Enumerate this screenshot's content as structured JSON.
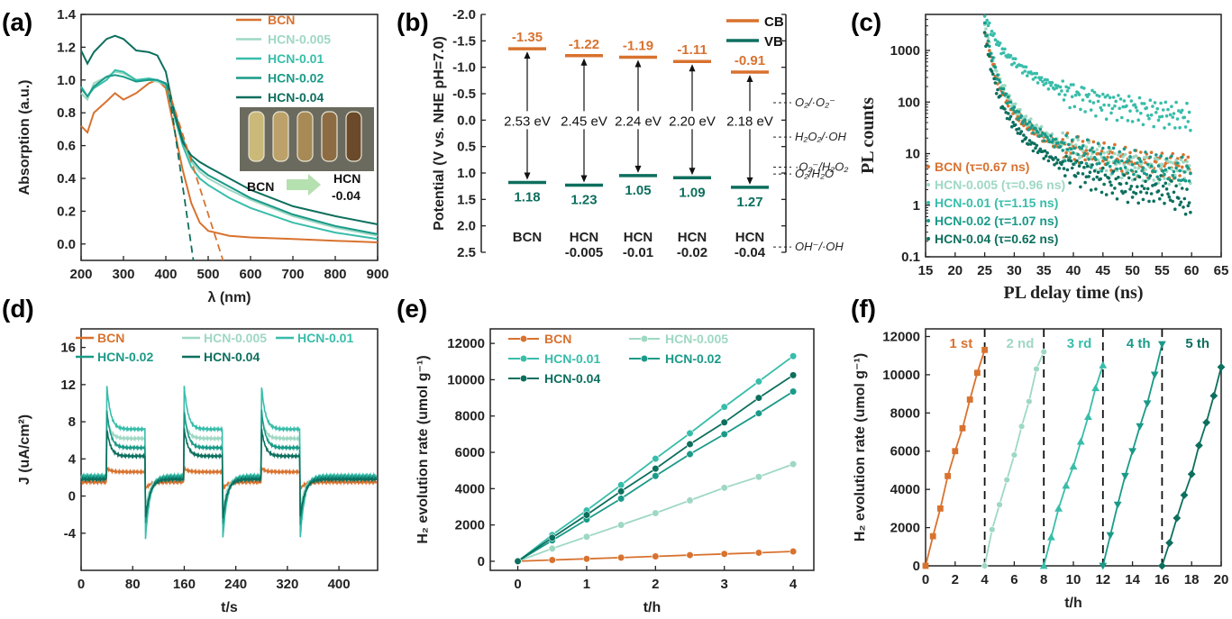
{
  "colors": {
    "BCN": "#d8722f",
    "HCN-0.005": "#9ed8c3",
    "HCN-0.01": "#38bdaa",
    "HCN-0.02": "#1a9a88",
    "HCN-0.04": "#0d6f5e",
    "CB": "#d8722f",
    "VB": "#0d6f5e"
  },
  "chart_data": [
    {
      "panel": "(a)",
      "type": "line",
      "xlabel": "λ (nm)",
      "ylabel": "Absorption (a.u.)",
      "xlim": [
        200,
        900
      ],
      "ylim": [
        -0.1,
        1.4
      ],
      "xticks": [
        200,
        300,
        400,
        500,
        600,
        700,
        800,
        900
      ],
      "yticks": [
        0.0,
        0.2,
        0.4,
        0.6,
        0.8,
        1.0,
        1.2,
        1.4
      ],
      "legend_position": "top-right",
      "series": [
        {
          "name": "BCN",
          "x": [
            200,
            215,
            230,
            260,
            280,
            300,
            330,
            360,
            380,
            400,
            420,
            440,
            460,
            480,
            500,
            550,
            600,
            700,
            800,
            900
          ],
          "y": [
            0.72,
            0.68,
            0.8,
            0.87,
            0.92,
            0.88,
            0.92,
            0.98,
            1.0,
            0.95,
            0.7,
            0.45,
            0.25,
            0.13,
            0.08,
            0.05,
            0.04,
            0.03,
            0.02,
            0.01
          ]
        },
        {
          "name": "HCN-0.005",
          "x": [
            200,
            215,
            230,
            260,
            280,
            300,
            330,
            360,
            380,
            400,
            420,
            440,
            460,
            480,
            500,
            550,
            600,
            700,
            800,
            900
          ],
          "y": [
            0.92,
            0.88,
            0.98,
            1.02,
            1.05,
            1.04,
            1.0,
            1.0,
            0.99,
            0.97,
            0.8,
            0.62,
            0.5,
            0.44,
            0.4,
            0.33,
            0.27,
            0.17,
            0.1,
            0.05
          ]
        },
        {
          "name": "HCN-0.01",
          "x": [
            200,
            215,
            230,
            260,
            280,
            300,
            330,
            360,
            380,
            400,
            420,
            440,
            460,
            480,
            500,
            550,
            600,
            700,
            800,
            900
          ],
          "y": [
            0.96,
            0.9,
            0.95,
            1.0,
            1.06,
            1.05,
            1.0,
            1.01,
            1.0,
            0.97,
            0.78,
            0.6,
            0.47,
            0.4,
            0.36,
            0.28,
            0.22,
            0.13,
            0.07,
            0.03
          ]
        },
        {
          "name": "HCN-0.02",
          "x": [
            200,
            215,
            230,
            260,
            280,
            300,
            330,
            360,
            380,
            400,
            420,
            440,
            460,
            480,
            500,
            550,
            600,
            700,
            800,
            900
          ],
          "y": [
            0.95,
            0.9,
            0.96,
            1.02,
            1.03,
            1.02,
            0.99,
            1.0,
            1.0,
            0.98,
            0.82,
            0.64,
            0.52,
            0.46,
            0.42,
            0.35,
            0.28,
            0.18,
            0.11,
            0.06
          ]
        },
        {
          "name": "HCN-0.04",
          "x": [
            200,
            215,
            230,
            260,
            280,
            300,
            330,
            360,
            380,
            400,
            420,
            440,
            460,
            480,
            500,
            550,
            600,
            700,
            800,
            900
          ],
          "y": [
            1.18,
            1.1,
            1.17,
            1.25,
            1.27,
            1.25,
            1.18,
            1.17,
            1.15,
            1.05,
            0.8,
            0.62,
            0.54,
            0.5,
            0.47,
            0.4,
            0.33,
            0.23,
            0.17,
            0.12
          ]
        }
      ],
      "annotations": [
        "BCN",
        "HCN",
        "-0.04"
      ]
    },
    {
      "panel": "(b)",
      "type": "band diagram",
      "ylabel": "Potential (V vs. NHE pH=7.0)",
      "ylim": [
        -2.0,
        2.5
      ],
      "yticks": [
        -2.0,
        -1.5,
        -1.0,
        -0.5,
        0.0,
        0.5,
        1.0,
        1.5,
        2.0,
        2.5
      ],
      "ytick_labels": [
        "-2.0",
        "-1.5",
        "-1.0",
        "-0.5",
        "0.0",
        "0.5",
        "1.0",
        "1.5",
        "2.0",
        "2.5"
      ],
      "legend": [
        "CB",
        "VB"
      ],
      "legend_position": "top-right",
      "samples": [
        {
          "label": [
            "BCN"
          ],
          "CB": -1.35,
          "VB": 1.18,
          "cb_label": "-1.35",
          "vb_label": "1.18",
          "gap_label": "2.53 eV"
        },
        {
          "label": [
            "HCN",
            "-0.005"
          ],
          "CB": -1.22,
          "VB": 1.23,
          "cb_label": "-1.22",
          "vb_label": "1.23",
          "gap_label": "2.45 eV"
        },
        {
          "label": [
            "HCN",
            "-0.01"
          ],
          "CB": -1.19,
          "VB": 1.05,
          "cb_label": "-1.19",
          "vb_label": "1.05",
          "gap_label": "2.24 eV"
        },
        {
          "label": [
            "HCN",
            "-0.02"
          ],
          "CB": -1.11,
          "VB": 1.09,
          "cb_label": "-1.11",
          "vb_label": "1.09",
          "gap_label": "2.20 eV"
        },
        {
          "label": [
            "HCN",
            "-0.04"
          ],
          "CB": -0.91,
          "VB": 1.27,
          "cb_label": "-0.91",
          "vb_label": "1.27",
          "gap_label": "2.18 eV"
        }
      ],
      "redox_levels": [
        {
          "label": "O₂/·O₂⁻",
          "E": -0.33
        },
        {
          "label": "H₂O₂/·OH",
          "E": 0.32
        },
        {
          "label": "·O₂⁻/H₂O₂",
          "E": 0.89
        },
        {
          "label": "O₂/H₂O",
          "E": 1.02
        },
        {
          "label": "OH⁻/·OH",
          "E": 2.4
        }
      ]
    },
    {
      "panel": "(c)",
      "type": "scatter",
      "xlabel": "PL delay time (ns)",
      "ylabel": "PL counts",
      "yscale": "log",
      "xlim": [
        15,
        65
      ],
      "ylim": [
        0.1,
        5000
      ],
      "xticks": [
        15,
        20,
        25,
        30,
        35,
        40,
        45,
        50,
        55,
        60,
        65
      ],
      "yticks": [
        0.1,
        1,
        10,
        100,
        1000
      ],
      "ytick_labels": [
        "0.1",
        "1",
        "10",
        "100",
        "1000"
      ],
      "legend_position": "bottom-left",
      "series": [
        {
          "name": "BCN (τ=0.67 ns)",
          "x": [
            25,
            26,
            27,
            28,
            30,
            32,
            35,
            38,
            40,
            45,
            50,
            55,
            60
          ],
          "y": [
            2500,
            800,
            300,
            150,
            60,
            35,
            20,
            14,
            12,
            9,
            7,
            6,
            6
          ]
        },
        {
          "name": "HCN-0.005 (τ=0.96 ns)",
          "x": [
            25,
            26,
            27,
            28,
            30,
            32,
            35,
            38,
            40,
            45,
            50,
            55,
            60
          ],
          "y": [
            3500,
            1000,
            400,
            200,
            80,
            45,
            25,
            15,
            12,
            8,
            6,
            5,
            5
          ]
        },
        {
          "name": "HCN-0.01 (τ=1.15 ns)",
          "x": [
            25,
            26,
            27,
            28,
            30,
            32,
            35,
            38,
            40,
            45,
            50,
            55,
            60
          ],
          "y": [
            4500,
            2500,
            1500,
            1000,
            600,
            400,
            250,
            170,
            140,
            95,
            75,
            60,
            50
          ]
        },
        {
          "name": "HCN-0.02 (τ=1.07 ns)",
          "x": [
            25,
            26,
            27,
            28,
            30,
            32,
            35,
            38,
            40,
            45,
            50,
            55,
            60
          ],
          "y": [
            3000,
            900,
            350,
            170,
            70,
            38,
            22,
            14,
            12,
            8,
            6,
            5,
            4
          ]
        },
        {
          "name": "HCN-0.04 (τ=0.62 ns)",
          "x": [
            25,
            26,
            27,
            28,
            30,
            32,
            35,
            38,
            40,
            45,
            50,
            55,
            60
          ],
          "y": [
            2000,
            500,
            180,
            80,
            35,
            18,
            10,
            6,
            5,
            3,
            2,
            2,
            1
          ]
        }
      ]
    },
    {
      "panel": "(d)",
      "type": "line",
      "xlabel": "t/s",
      "ylabel": "J (uA/cm²)",
      "xlim": [
        0,
        460
      ],
      "ylim": [
        -8,
        18
      ],
      "xticks": [
        0,
        80,
        160,
        240,
        320,
        400
      ],
      "yticks": [
        -4,
        0,
        4,
        8,
        12,
        16
      ],
      "legend_position": "top",
      "light_on": [
        40,
        160,
        280
      ],
      "light_off": [
        100,
        220,
        340
      ],
      "series": [
        {
          "name": "BCN",
          "dark": 1.5,
          "spike": 3.0,
          "plateau": 2.6,
          "neg_spike": 0.8
        },
        {
          "name": "HCN-0.005",
          "dark": 2.0,
          "spike": 8.5,
          "plateau": 6.2,
          "neg_spike": -1.5
        },
        {
          "name": "HCN-0.01",
          "dark": 2.2,
          "spike": 11.8,
          "plateau": 7.2,
          "neg_spike": -4.5
        },
        {
          "name": "HCN-0.02",
          "dark": 2.0,
          "spike": 9.2,
          "plateau": 5.2,
          "neg_spike": -3.0
        },
        {
          "name": "HCN-0.04",
          "dark": 1.8,
          "spike": 7.2,
          "plateau": 4.3,
          "neg_spike": -2.3
        }
      ]
    },
    {
      "panel": "(e)",
      "type": "line",
      "xlabel": "t/h",
      "ylabel": "H₂ evolution rate (umol g⁻¹)",
      "xlim": [
        -0.4,
        4.3
      ],
      "ylim": [
        -500,
        12800
      ],
      "xticks": [
        0,
        1,
        2,
        3,
        4
      ],
      "yticks": [
        0,
        2000,
        4000,
        6000,
        8000,
        10000,
        12000
      ],
      "legend_position": "top-left",
      "x": [
        0,
        0.5,
        1,
        1.5,
        2,
        2.5,
        3,
        3.5,
        4
      ],
      "series": [
        {
          "name": "BCN",
          "values": [
            0,
            70,
            135,
            200,
            270,
            340,
            405,
            470,
            540
          ]
        },
        {
          "name": "HCN-0.005",
          "values": [
            0,
            700,
            1350,
            2000,
            2650,
            3350,
            4050,
            4650,
            5350
          ]
        },
        {
          "name": "HCN-0.01",
          "values": [
            0,
            1450,
            2800,
            4200,
            5650,
            7050,
            8500,
            9900,
            11300
          ]
        },
        {
          "name": "HCN-0.02",
          "values": [
            0,
            1150,
            2300,
            3450,
            4700,
            5900,
            7000,
            8150,
            9350
          ]
        },
        {
          "name": "HCN-0.04",
          "values": [
            0,
            1300,
            2550,
            3850,
            5100,
            6450,
            7650,
            9000,
            10250
          ]
        }
      ]
    },
    {
      "panel": "(f)",
      "type": "line",
      "xlabel": "t/h",
      "ylabel": "H₂ evolution rate (umol g⁻¹)",
      "xlim": [
        0,
        20
      ],
      "ylim": [
        0,
        12400
      ],
      "xticks": [
        0,
        2,
        4,
        6,
        8,
        10,
        12,
        14,
        16,
        18,
        20
      ],
      "yticks": [
        0,
        2000,
        4000,
        6000,
        8000,
        10000,
        12000
      ],
      "cycle_boundaries": [
        4,
        8,
        12,
        16
      ],
      "series": [
        {
          "name": "1 st",
          "x": [
            0,
            0.5,
            1,
            1.5,
            2,
            2.5,
            3,
            3.5,
            4
          ],
          "y": [
            0,
            1550,
            3000,
            4700,
            6000,
            7200,
            8700,
            10100,
            11300
          ]
        },
        {
          "name": "2 nd",
          "x": [
            4,
            4.5,
            5,
            5.5,
            6,
            6.5,
            7,
            7.5,
            8
          ],
          "y": [
            0,
            1900,
            3200,
            4500,
            5800,
            7300,
            8600,
            10300,
            11200
          ]
        },
        {
          "name": "3 rd",
          "x": [
            8,
            8.5,
            9,
            9.5,
            10,
            10.5,
            11,
            11.5,
            12
          ],
          "y": [
            0,
            1500,
            3000,
            4200,
            5200,
            6500,
            7800,
            9300,
            10500
          ]
        },
        {
          "name": "4 th",
          "x": [
            12,
            12.5,
            13,
            13.5,
            14,
            14.5,
            15,
            15.5,
            16
          ],
          "y": [
            0,
            1600,
            3200,
            4700,
            6000,
            7300,
            8500,
            10000,
            11600
          ]
        },
        {
          "name": "5 th",
          "x": [
            16,
            16.5,
            17,
            17.5,
            18,
            18.5,
            19,
            19.5,
            20
          ],
          "y": [
            0,
            1200,
            2500,
            3700,
            4800,
            6300,
            7500,
            8900,
            10400
          ]
        }
      ]
    }
  ],
  "panel_labels": [
    "(a)",
    "(b)",
    "(c)",
    "(d)",
    "(e)",
    "(f)"
  ]
}
